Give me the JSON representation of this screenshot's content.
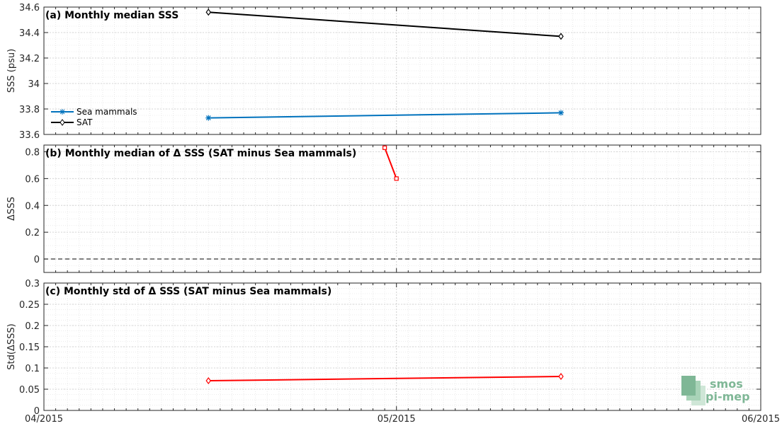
{
  "chart_data": [
    {
      "type": "line",
      "title": "(a) Monthly median SSS",
      "ylabel": "SSS (psu)",
      "ylim": [
        33.6,
        34.6
      ],
      "yticks": [
        33.6,
        33.8,
        34,
        34.2,
        34.4,
        34.6
      ],
      "ytick_labels": [
        "33.6",
        "33.8",
        "34",
        "34.2",
        "34.4",
        "34.6"
      ],
      "xlim": [
        "2015-04-01",
        "2015-06-01"
      ],
      "xtick_labels": [
        "04/2015",
        "05/2015",
        "06/2015"
      ],
      "grid": true,
      "legend_position": "left",
      "series": [
        {
          "name": "Sea mammals",
          "color": "#0072bd",
          "marker": "star",
          "x": [
            "2015-04-15",
            "2015-05-15"
          ],
          "y": [
            33.73,
            33.77
          ]
        },
        {
          "name": "SAT",
          "color": "#000000",
          "marker": "diamond",
          "x": [
            "2015-04-15",
            "2015-05-15"
          ],
          "y": [
            34.56,
            34.37
          ]
        }
      ]
    },
    {
      "type": "line",
      "title": "(b) Monthly median of Δ SSS (SAT minus Sea mammals)",
      "ylabel": "ΔSSS",
      "ylim": [
        -0.1,
        0.85
      ],
      "yticks": [
        0,
        0.2,
        0.4,
        0.6,
        0.8
      ],
      "ytick_labels": [
        "0",
        "0.2",
        "0.4",
        "0.6",
        "0.8"
      ],
      "xlim": [
        "2015-04-01",
        "2015-06-01"
      ],
      "xtick_labels": [
        "04/2015",
        "05/2015",
        "06/2015"
      ],
      "grid": true,
      "zero_line": true,
      "series": [
        {
          "color": "#ff0000",
          "marker": "square",
          "x": [
            "2015-04-30",
            "2015-05-01"
          ],
          "y": [
            0.83,
            0.6
          ]
        }
      ]
    },
    {
      "type": "line",
      "title": "(c) Monthly std of Δ SSS (SAT minus Sea mammals)",
      "ylabel": "Std(ΔSSS)",
      "ylim": [
        0,
        0.3
      ],
      "yticks": [
        0,
        0.05,
        0.1,
        0.15,
        0.2,
        0.25,
        0.3
      ],
      "ytick_labels": [
        "0",
        "0.05",
        "0.1",
        "0.15",
        "0.2",
        "0.25",
        "0.3"
      ],
      "xlim": [
        "2015-04-01",
        "2015-06-01"
      ],
      "xtick_labels": [
        "04/2015",
        "05/2015",
        "06/2015"
      ],
      "grid": true,
      "series": [
        {
          "color": "#ff0000",
          "marker": "diamond",
          "x": [
            "2015-04-15",
            "2015-05-15"
          ],
          "y": [
            0.07,
            0.08
          ]
        }
      ]
    }
  ],
  "logo": {
    "line1": "smos",
    "line2": "pi-mep"
  }
}
